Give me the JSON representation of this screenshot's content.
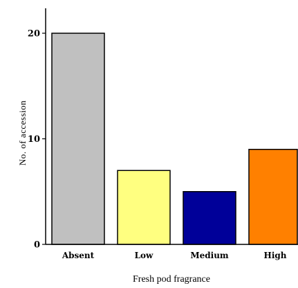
{
  "chart_data": {
    "type": "bar",
    "categories": [
      "Absent",
      "Low",
      "Medium",
      "High"
    ],
    "values": [
      20,
      7,
      5,
      9
    ],
    "colors": [
      "#c0c0c0",
      "#ffff80",
      "#000099",
      "#ff8000"
    ],
    "xlabel": "Fresh pod fragrance",
    "ylabel": "No. of accession",
    "ylim": [
      0,
      22
    ],
    "yticks": [
      0,
      10,
      20
    ],
    "grid": false
  }
}
